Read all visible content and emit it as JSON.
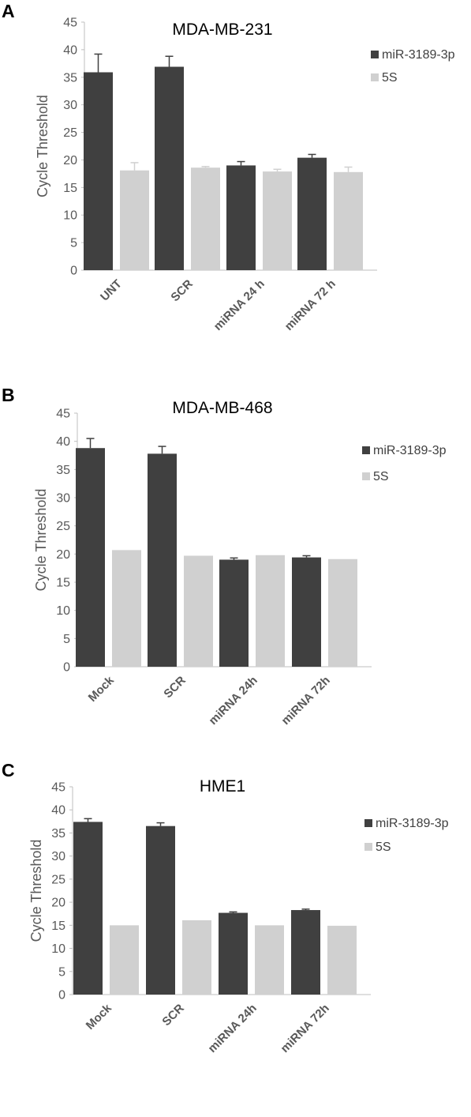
{
  "chart_data": [
    {
      "panel": "A",
      "type": "bar",
      "title": "MDA-MB-231",
      "ylabel": "Cycle Threshold",
      "xlabel": "",
      "ylim": [
        0,
        45
      ],
      "yticks": [
        0,
        5,
        10,
        15,
        20,
        25,
        30,
        35,
        40,
        45
      ],
      "categories": [
        "UNT",
        "SCR",
        "miRNA 24 h",
        "miRNA 72 h"
      ],
      "series": [
        {
          "name": "miR-3189-3p",
          "color": "#404040",
          "values": [
            35.9,
            36.9,
            19.0,
            20.4
          ],
          "errors": [
            3.3,
            1.9,
            0.7,
            0.6
          ]
        },
        {
          "name": "5S",
          "color": "#d0d0d0",
          "values": [
            18.1,
            18.6,
            17.9,
            17.8
          ],
          "errors": [
            1.4,
            0.2,
            0.4,
            0.9
          ]
        }
      ],
      "legend": "right"
    },
    {
      "panel": "B",
      "type": "bar",
      "title": "MDA-MB-468",
      "ylabel": "Cycle Threshold",
      "xlabel": "",
      "ylim": [
        0,
        45
      ],
      "yticks": [
        0,
        5,
        10,
        15,
        20,
        25,
        30,
        35,
        40,
        45
      ],
      "categories": [
        "Mock",
        "SCR",
        "miRNA 24h",
        "miRNA 72h"
      ],
      "series": [
        {
          "name": "miR-3189-3p",
          "color": "#404040",
          "values": [
            38.8,
            37.8,
            19.0,
            19.4
          ],
          "errors": [
            1.7,
            1.3,
            0.3,
            0.3
          ]
        },
        {
          "name": "5S",
          "color": "#d0d0d0",
          "values": [
            20.7,
            19.7,
            19.8,
            19.1
          ],
          "errors": [
            0,
            0,
            0,
            0
          ]
        }
      ],
      "legend": "right"
    },
    {
      "panel": "C",
      "type": "bar",
      "title": "HME1",
      "ylabel": "Cycle Threshold",
      "xlabel": "",
      "ylim": [
        0,
        45
      ],
      "yticks": [
        0,
        5,
        10,
        15,
        20,
        25,
        30,
        35,
        40,
        45
      ],
      "categories": [
        "Mock",
        "SCR",
        "miRNA 24h",
        "miRNA 72h"
      ],
      "series": [
        {
          "name": "miR-3189-3p",
          "color": "#404040",
          "values": [
            37.4,
            36.5,
            17.7,
            18.3
          ],
          "errors": [
            0.7,
            0.7,
            0.2,
            0.2
          ]
        },
        {
          "name": "5S",
          "color": "#d0d0d0",
          "values": [
            15.0,
            16.1,
            15.0,
            14.9
          ],
          "errors": [
            0,
            0,
            0,
            0
          ]
        }
      ],
      "legend": "right"
    }
  ]
}
